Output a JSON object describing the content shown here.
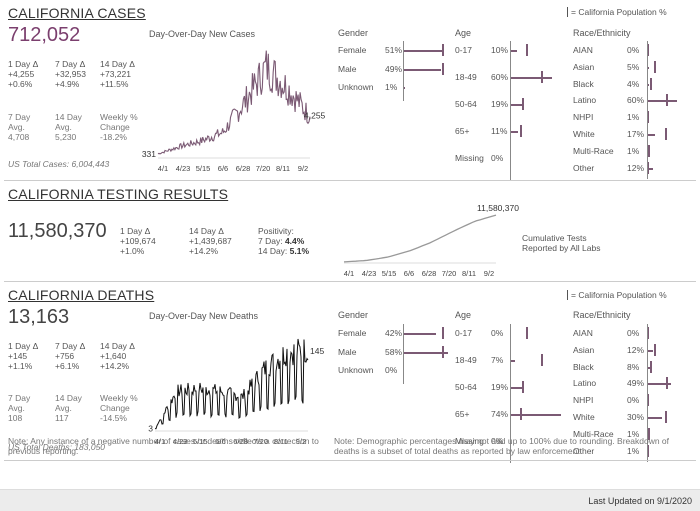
{
  "cases": {
    "title": "CALIFORNIA CASES",
    "total": "712,052",
    "chart_title": "Day-Over-Day New Cases",
    "stats": [
      {
        "label": "1 Day Δ",
        "v1": "+4,255",
        "v2": "+0.6%"
      },
      {
        "label": "7 Day Δ",
        "v1": "+32,953",
        "v2": "+4.9%"
      },
      {
        "label": "14 Day Δ",
        "v1": "+73,221",
        "v2": "+11.5%"
      }
    ],
    "avg": [
      {
        "l1": "7 Day",
        "l2": "Avg.",
        "v": "4,708"
      },
      {
        "l1": "14 Day",
        "l2": "Avg.",
        "v": "5,230"
      },
      {
        "l1": "Weekly %",
        "l2": "Change",
        "v": "-18.2%"
      }
    ],
    "us_total": "US Total Cases: 6,004,443",
    "start_label": "331",
    "end_label": "4,255"
  },
  "testing": {
    "title": "CALIFORNIA TESTING RESULTS",
    "total": "11,580,370",
    "d1_label": "1 Day Δ",
    "d1_v": "+109,674",
    "d1_p": "+1.0%",
    "d14_label": "14 Day Δ",
    "d14_v": "+1,439,687",
    "d14_p": "+14.2%",
    "pos_label": "Positivity:",
    "pos7_label": "7 Day:",
    "pos7": "4.4%",
    "pos14_label": "14 Day:",
    "pos14": "5.1%",
    "chart_top_label": "11,580,370",
    "cum_label_1": "Cumulative Tests",
    "cum_label_2": "Reported by All Labs"
  },
  "deaths": {
    "title": "CALIFORNIA DEATHS",
    "total": "13,163",
    "chart_title": "Day-Over-Day New Deaths",
    "stats": [
      {
        "label": "1 Day Δ",
        "v1": "+145",
        "v2": "+1.1%"
      },
      {
        "label": "7 Day Δ",
        "v1": "+756",
        "v2": "+6.1%"
      },
      {
        "label": "14 Day Δ",
        "v1": "+1,640",
        "v2": "+14.2%"
      }
    ],
    "avg": [
      {
        "l1": "7 Day",
        "l2": "Avg.",
        "v": "108"
      },
      {
        "l1": "14 Day",
        "l2": "Avg.",
        "v": "117"
      },
      {
        "l1": "Weekly %",
        "l2": "Change",
        "v": "-14.5%"
      }
    ],
    "us_total": "US Total Deaths: 183,050",
    "start_label": "3",
    "end_label": "145"
  },
  "x_ticks": [
    "4/1",
    "4/23",
    "5/15",
    "6/6",
    "6/28",
    "7/20",
    "8/11",
    "9/2"
  ],
  "legend_text": "= California Population %",
  "gender_header": "Gender",
  "age_header": "Age",
  "race_header": "Race/Ethnicity",
  "cases_gender": [
    {
      "label": "Female",
      "value": "51%",
      "pct": 51,
      "pop": 50
    },
    {
      "label": "Male",
      "value": "49%",
      "pct": 49,
      "pop": 50
    },
    {
      "label": "Unknown",
      "value": "1%",
      "pct": 1,
      "pop": null
    }
  ],
  "cases_age": [
    {
      "label": "0-17",
      "value": "10%",
      "pct": 10,
      "pop": 23
    },
    {
      "label": "18-49",
      "value": "60%",
      "pct": 60,
      "pop": 45
    },
    {
      "label": "50-64",
      "value": "19%",
      "pct": 19,
      "pop": 18
    },
    {
      "label": "65+",
      "value": "11%",
      "pct": 11,
      "pop": 14
    },
    {
      "label": "Missing",
      "value": "0%",
      "pct": 0,
      "pop": null
    }
  ],
  "cases_race": [
    {
      "label": "AIAN",
      "value": "0%",
      "pct": 0,
      "pop": 0.5
    },
    {
      "label": "Asian",
      "value": "5%",
      "pct": 5,
      "pop": 15
    },
    {
      "label": "Black",
      "value": "4%",
      "pct": 4,
      "pop": 6
    },
    {
      "label": "Latino",
      "value": "60%",
      "pct": 60,
      "pop": 39
    },
    {
      "label": "NHPI",
      "value": "1%",
      "pct": 1,
      "pop": 0.3
    },
    {
      "label": "White",
      "value": "17%",
      "pct": 17,
      "pop": 37
    },
    {
      "label": "Multi-Race",
      "value": "1%",
      "pct": 1,
      "pop": 2
    },
    {
      "label": "Other",
      "value": "12%",
      "pct": 12,
      "pop": 0.3
    }
  ],
  "deaths_gender": [
    {
      "label": "Female",
      "value": "42%",
      "pct": 42,
      "pop": 50
    },
    {
      "label": "Male",
      "value": "58%",
      "pct": 58,
      "pop": 50
    },
    {
      "label": "Unknown",
      "value": "0%",
      "pct": 0,
      "pop": null
    }
  ],
  "deaths_age": [
    {
      "label": "0-17",
      "value": "0%",
      "pct": 0,
      "pop": 23
    },
    {
      "label": "18-49",
      "value": "7%",
      "pct": 7,
      "pop": 45
    },
    {
      "label": "50-64",
      "value": "19%",
      "pct": 19,
      "pop": 18
    },
    {
      "label": "65+",
      "value": "74%",
      "pct": 74,
      "pop": 14
    },
    {
      "label": "Missing",
      "value": "0%",
      "pct": 0,
      "pop": null
    }
  ],
  "deaths_race": [
    {
      "label": "AIAN",
      "value": "0%",
      "pct": 0,
      "pop": 0.5
    },
    {
      "label": "Asian",
      "value": "12%",
      "pct": 12,
      "pop": 15
    },
    {
      "label": "Black",
      "value": "8%",
      "pct": 8,
      "pop": 6
    },
    {
      "label": "Latino",
      "value": "49%",
      "pct": 49,
      "pop": 39
    },
    {
      "label": "NHPI",
      "value": "0%",
      "pct": 0,
      "pop": 0.3
    },
    {
      "label": "White",
      "value": "30%",
      "pct": 30,
      "pop": 37
    },
    {
      "label": "Multi-Race",
      "value": "1%",
      "pct": 1,
      "pop": 2
    },
    {
      "label": "Other",
      "value": "1%",
      "pct": 1,
      "pop": 0.3
    }
  ],
  "note_left": "Note: Any instance of a negative number of cases or deaths reflects a correction to previous reporting.",
  "note_right": "Note: Demographic percentages may not add up to 100% due to rounding. Breakdown of deaths is a subset of total deaths as reported by law enforcement.",
  "footer_text": "Last Updated on 9/1/2020",
  "colors": {
    "accent": "#7b5a74",
    "cases_line": "#7b5a74",
    "deaths_line": "#111111",
    "tests_line": "#999999"
  },
  "chart_data": [
    {
      "type": "line",
      "title": "Day-Over-Day New Cases",
      "x": [
        "4/1",
        "4/23",
        "5/15",
        "6/6",
        "6/28",
        "7/20",
        "8/11",
        "9/2"
      ],
      "series": [
        {
          "values": [
            331,
            1100,
            1700,
            2600,
            5800,
            9500,
            7200,
            4255
          ]
        }
      ]
    },
    {
      "type": "line",
      "title": "Day-Over-Day New Deaths",
      "x": [
        "4/1",
        "4/23",
        "5/15",
        "6/6",
        "6/28",
        "7/20",
        "8/11",
        "9/2"
      ],
      "series": [
        {
          "values": [
            3,
            70,
            75,
            70,
            60,
            110,
            140,
            145
          ]
        }
      ]
    },
    {
      "type": "line",
      "x": [
        "4/1",
        "4/23",
        "5/15",
        "6/6",
        "6/28",
        "7/20",
        "8/11",
        "9/2"
      ],
      "series": [
        {
          "values": [
            30000,
            350000,
            1200000,
            2700000,
            4800000,
            7500000,
            10000000,
            11580370
          ]
        }
      ]
    }
  ]
}
